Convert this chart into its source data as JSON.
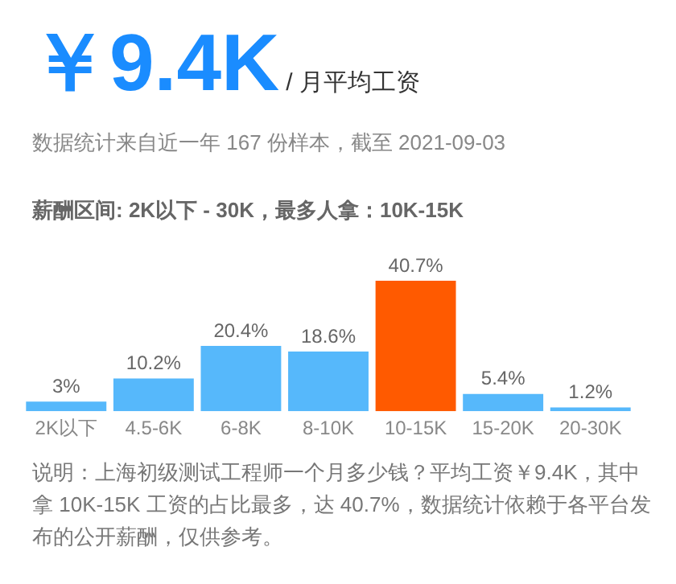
{
  "chart_data": {
    "type": "bar",
    "title": "￥9.4K",
    "subtitle": "/ 月平均工资",
    "annotations": [
      "数据统计来自近一年 167 份样本，截至 2021-09-03",
      "薪酬区间: 2K以下 - 30K，最多人拿：10K-15K",
      "说明：上海初级测试工程师一个月多少钱？平均工资￥9.4K，其中拿 10K-15K 工资的占比最多，达 40.7%，数据统计依赖于各平台发布的公开薪酬，仅供参考。"
    ],
    "categories": [
      "2K以下",
      "4.5-6K",
      "6-8K",
      "8-10K",
      "10-15K",
      "15-20K",
      "20-30K"
    ],
    "values": [
      3,
      10.2,
      20.4,
      18.6,
      40.7,
      5.4,
      1.2
    ],
    "value_labels": [
      "3%",
      "10.2%",
      "20.4%",
      "18.6%",
      "40.7%",
      "5.4%",
      "1.2%"
    ],
    "colors": [
      "#56b8fb",
      "#56b8fb",
      "#56b8fb",
      "#56b8fb",
      "#ff5a00",
      "#56b8fb",
      "#56b8fb"
    ],
    "grid": false,
    "legend": false
  }
}
